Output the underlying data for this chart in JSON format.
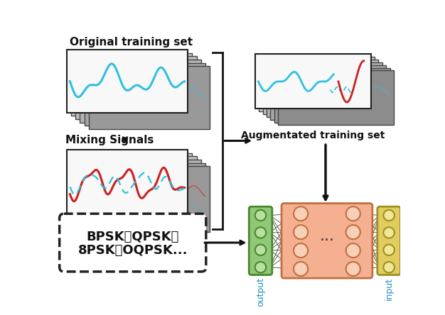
{
  "bg_color": "#ffffff",
  "cyan_color": "#30c0e0",
  "red_color": "#cc2020",
  "green_node_fill": "#b8e0a0",
  "green_box_fill": "#90c878",
  "green_edge": "#4a8830",
  "yellow_node_fill": "#f0e898",
  "yellow_box_fill": "#e0cc60",
  "yellow_edge": "#a09020",
  "peach_box_fill": "#f4b090",
  "peach_node_fill": "#f8d0b8",
  "peach_edge": "#c07040",
  "card_bg": "#d8d8d8",
  "card_edge": "#444444",
  "front_card_bg": "#f8f8f8",
  "text_orig": "Original training set",
  "text_mixing": "Mixing Signals",
  "text_augmented": "Augmentated training set",
  "text_labels_line1": "BPSK、QPSK、",
  "text_labels_line2": "8PSK、OQPSK...",
  "text_output": "output",
  "text_input": "input"
}
